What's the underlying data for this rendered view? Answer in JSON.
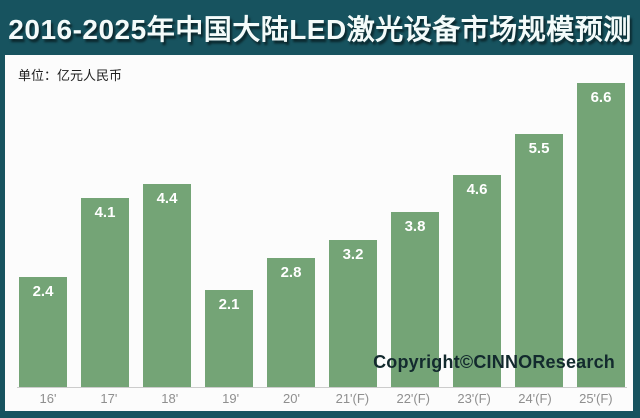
{
  "header": {
    "title": "2016-2025年中国大陆LED激光设备市场规模预测"
  },
  "unit_label": "单位：亿元人民币",
  "copyright": "Copyright©CINNOResearch",
  "colors": {
    "frame_teal": "#17535f",
    "bar_green": "#74a476",
    "axis_line": "#cccccc",
    "tick_label_gray": "#8f8f8f",
    "bar_value_text": "#ffffff",
    "copyright_text": "#132a2e"
  },
  "chart_data": {
    "type": "bar",
    "categories": [
      "16'",
      "17'",
      "18'",
      "19'",
      "20'",
      "21'(F)",
      "22'(F)",
      "23'(F)",
      "24'(F)",
      "25'(F)"
    ],
    "values": [
      2.4,
      4.1,
      4.4,
      2.1,
      2.8,
      3.2,
      3.8,
      4.6,
      5.5,
      6.6
    ],
    "title": "2016-2025年中国大陆LED激光设备市场规模预测",
    "xlabel": "",
    "ylabel": "亿元人民币",
    "ylim": [
      0,
      6.8
    ],
    "grid": false,
    "legend": "none",
    "value_labels": "inside-top"
  }
}
